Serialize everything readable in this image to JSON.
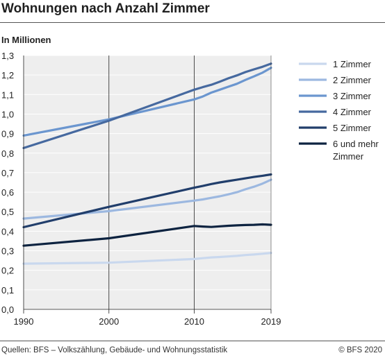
{
  "header": {
    "title": "Wohnungen nach Anzahl Zimmer",
    "subtitle": "In Millionen"
  },
  "footer": {
    "source": "Quellen: BFS – Volkszählung, Gebäude- und Wohnungsstatistik",
    "copyright": "© BFS 2020"
  },
  "chart_data": {
    "type": "line",
    "title": "Wohnungen nach Anzahl Zimmer",
    "ylabel": "In Millionen",
    "xlabel": "",
    "xlim": [
      1990,
      2019
    ],
    "ylim": [
      0,
      1.3
    ],
    "x_ticks": [
      1990,
      2000,
      2010,
      2019
    ],
    "y_ticks": [
      "0,0",
      "0,1",
      "0,2",
      "0,3",
      "0,4",
      "0,5",
      "0,6",
      "0,7",
      "0,8",
      "0,9",
      "1,0",
      "1,1",
      "1,2",
      "1,3"
    ],
    "grid": true,
    "legend_position": "right",
    "x": [
      1990,
      2000,
      2010,
      2011,
      2012,
      2013,
      2014,
      2015,
      2016,
      2017,
      2018,
      2019
    ],
    "series": [
      {
        "name": "1 Zimmer",
        "color": "#c9d8ee",
        "values": [
          0.234,
          0.239,
          0.258,
          0.262,
          0.266,
          0.268,
          0.271,
          0.274,
          0.278,
          0.281,
          0.285,
          0.289
        ]
      },
      {
        "name": "2 Zimmer",
        "color": "#9cb8e0",
        "values": [
          0.465,
          0.503,
          0.557,
          0.563,
          0.571,
          0.579,
          0.589,
          0.6,
          0.615,
          0.628,
          0.644,
          0.664
        ]
      },
      {
        "name": "3 Zimmer",
        "color": "#6b96cf",
        "values": [
          0.89,
          0.973,
          1.075,
          1.09,
          1.11,
          1.125,
          1.14,
          1.155,
          1.175,
          1.193,
          1.212,
          1.237
        ]
      },
      {
        "name": "4 Zimmer",
        "color": "#46699f",
        "values": [
          0.826,
          0.966,
          1.125,
          1.138,
          1.15,
          1.166,
          1.183,
          1.198,
          1.215,
          1.229,
          1.242,
          1.258
        ]
      },
      {
        "name": "5 Zimmer",
        "color": "#213e6b",
        "values": [
          0.421,
          0.525,
          0.623,
          0.632,
          0.642,
          0.65,
          0.657,
          0.664,
          0.671,
          0.678,
          0.684,
          0.691
        ]
      },
      {
        "name": "6 und mehr Zimmer",
        "color": "#0d2340",
        "values": [
          0.326,
          0.364,
          0.427,
          0.424,
          0.422,
          0.425,
          0.428,
          0.43,
          0.432,
          0.433,
          0.435,
          0.433
        ]
      }
    ]
  }
}
